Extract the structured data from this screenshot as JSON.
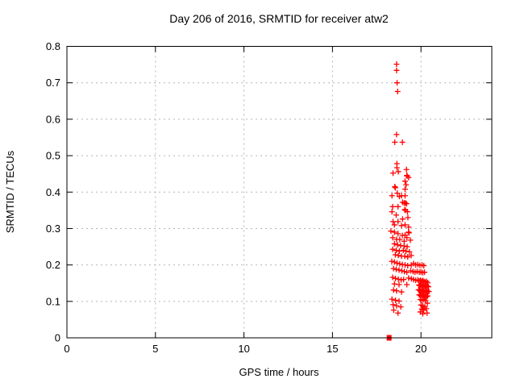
{
  "window": {
    "background": "#ffffff"
  },
  "chart_data": {
    "type": "scatter",
    "title": "Day 206 of 2016, SRMTID for receiver atw2",
    "xlabel": "GPS time / hours",
    "ylabel": "SRMTID / TECUs",
    "xlim": [
      0,
      24
    ],
    "ylim": [
      0,
      0.8
    ],
    "xticks": [
      {
        "value": 0,
        "label": "0"
      },
      {
        "value": 5,
        "label": "5"
      },
      {
        "value": 10,
        "label": "10"
      },
      {
        "value": 15,
        "label": "15"
      },
      {
        "value": 20,
        "label": "20"
      }
    ],
    "yticks": [
      {
        "value": 0,
        "label": "0"
      },
      {
        "value": 0.1,
        "label": "0.1"
      },
      {
        "value": 0.2,
        "label": "0.2"
      },
      {
        "value": 0.3,
        "label": "0.3"
      },
      {
        "value": 0.4,
        "label": "0.4"
      },
      {
        "value": 0.5,
        "label": "0.5"
      },
      {
        "value": 0.6,
        "label": "0.6"
      },
      {
        "value": 0.7,
        "label": "0.7"
      },
      {
        "value": 0.8,
        "label": "0.8"
      }
    ],
    "grid": true,
    "legend": "none",
    "colors": {
      "marker": "#ff0000",
      "grid": "#b4b4b4",
      "frame": "#000000",
      "text": "#000000",
      "background": "#ffffff"
    },
    "series": [
      {
        "marker": "plus",
        "color": "#ff0000",
        "points": [
          [
            18.62,
            0.751
          ],
          [
            18.62,
            0.734
          ],
          [
            18.65,
            0.7
          ],
          [
            18.68,
            0.676
          ],
          [
            18.62,
            0.558
          ],
          [
            18.52,
            0.537
          ],
          [
            18.95,
            0.537
          ],
          [
            18.64,
            0.478
          ],
          [
            18.64,
            0.467
          ],
          [
            18.42,
            0.452
          ],
          [
            18.72,
            0.456
          ],
          [
            19.18,
            0.462
          ],
          [
            19.2,
            0.446
          ],
          [
            19.22,
            0.444
          ],
          [
            19.3,
            0.44
          ],
          [
            19.1,
            0.43
          ],
          [
            19.16,
            0.42
          ],
          [
            18.52,
            0.415
          ],
          [
            18.55,
            0.412
          ],
          [
            19.1,
            0.408
          ],
          [
            18.66,
            0.397
          ],
          [
            18.36,
            0.39
          ],
          [
            18.9,
            0.39
          ],
          [
            19.1,
            0.39
          ],
          [
            18.78,
            0.388
          ],
          [
            18.96,
            0.372
          ],
          [
            19.05,
            0.37
          ],
          [
            19.12,
            0.37
          ],
          [
            19.18,
            0.368
          ],
          [
            18.4,
            0.36
          ],
          [
            18.7,
            0.36
          ],
          [
            19.08,
            0.352
          ],
          [
            19.12,
            0.35
          ],
          [
            19.24,
            0.346
          ],
          [
            18.36,
            0.346
          ],
          [
            18.6,
            0.337
          ],
          [
            18.96,
            0.326
          ],
          [
            19.26,
            0.33
          ],
          [
            18.42,
            0.319
          ],
          [
            18.7,
            0.319
          ],
          [
            18.5,
            0.31
          ],
          [
            18.9,
            0.308
          ],
          [
            19.1,
            0.31
          ],
          [
            19.3,
            0.304
          ],
          [
            18.3,
            0.293
          ],
          [
            18.5,
            0.29
          ],
          [
            19.3,
            0.29
          ],
          [
            19.32,
            0.288
          ],
          [
            18.7,
            0.286
          ],
          [
            18.95,
            0.281
          ],
          [
            19.1,
            0.282
          ],
          [
            18.4,
            0.275
          ],
          [
            18.62,
            0.27
          ],
          [
            18.8,
            0.27
          ],
          [
            19.2,
            0.275
          ],
          [
            19.4,
            0.268
          ],
          [
            19.05,
            0.265
          ],
          [
            18.5,
            0.258
          ],
          [
            18.68,
            0.255
          ],
          [
            18.85,
            0.253
          ],
          [
            19.05,
            0.252
          ],
          [
            19.22,
            0.25
          ],
          [
            18.4,
            0.243
          ],
          [
            18.6,
            0.24
          ],
          [
            18.78,
            0.238
          ],
          [
            19.0,
            0.24
          ],
          [
            19.15,
            0.238
          ],
          [
            19.35,
            0.236
          ],
          [
            18.55,
            0.228
          ],
          [
            18.72,
            0.226
          ],
          [
            18.9,
            0.224
          ],
          [
            19.08,
            0.224
          ],
          [
            19.25,
            0.222
          ],
          [
            19.45,
            0.226
          ],
          [
            18.35,
            0.21
          ],
          [
            18.5,
            0.208
          ],
          [
            18.65,
            0.205
          ],
          [
            18.8,
            0.203
          ],
          [
            18.95,
            0.201
          ],
          [
            19.1,
            0.2
          ],
          [
            19.25,
            0.198
          ],
          [
            19.45,
            0.2
          ],
          [
            19.58,
            0.204
          ],
          [
            19.7,
            0.2
          ],
          [
            19.82,
            0.201
          ],
          [
            19.94,
            0.199
          ],
          [
            20.06,
            0.2
          ],
          [
            20.16,
            0.198
          ],
          [
            18.45,
            0.19
          ],
          [
            18.6,
            0.188
          ],
          [
            18.76,
            0.186
          ],
          [
            18.92,
            0.184
          ],
          [
            19.06,
            0.182
          ],
          [
            19.2,
            0.18
          ],
          [
            19.42,
            0.184
          ],
          [
            19.55,
            0.182
          ],
          [
            19.66,
            0.18
          ],
          [
            19.78,
            0.182
          ],
          [
            19.9,
            0.18
          ],
          [
            20.0,
            0.181
          ],
          [
            20.1,
            0.179
          ],
          [
            20.2,
            0.18
          ],
          [
            18.4,
            0.166
          ],
          [
            18.56,
            0.163
          ],
          [
            18.72,
            0.161
          ],
          [
            18.88,
            0.159
          ],
          [
            19.02,
            0.16
          ],
          [
            19.3,
            0.164
          ],
          [
            19.46,
            0.162
          ],
          [
            19.58,
            0.16
          ],
          [
            19.7,
            0.158
          ],
          [
            19.82,
            0.159
          ],
          [
            19.9,
            0.156
          ],
          [
            19.97,
            0.158
          ],
          [
            20.04,
            0.155
          ],
          [
            20.1,
            0.157
          ],
          [
            20.17,
            0.155
          ],
          [
            20.24,
            0.153
          ],
          [
            20.31,
            0.155
          ],
          [
            20.38,
            0.151
          ],
          [
            18.5,
            0.148
          ],
          [
            18.76,
            0.146
          ],
          [
            19.2,
            0.146
          ],
          [
            19.88,
            0.145
          ],
          [
            19.94,
            0.143
          ],
          [
            20.0,
            0.145
          ],
          [
            20.06,
            0.141
          ],
          [
            20.12,
            0.143
          ],
          [
            20.18,
            0.141
          ],
          [
            20.24,
            0.142
          ],
          [
            20.3,
            0.14
          ],
          [
            20.36,
            0.142
          ],
          [
            20.42,
            0.14
          ],
          [
            18.45,
            0.131
          ],
          [
            18.62,
            0.129
          ],
          [
            18.9,
            0.126
          ],
          [
            19.86,
            0.132
          ],
          [
            19.92,
            0.13
          ],
          [
            19.98,
            0.128
          ],
          [
            20.04,
            0.13
          ],
          [
            20.1,
            0.127
          ],
          [
            20.16,
            0.129
          ],
          [
            20.22,
            0.126
          ],
          [
            20.28,
            0.128
          ],
          [
            20.34,
            0.126
          ],
          [
            20.4,
            0.128
          ],
          [
            20.45,
            0.127
          ],
          [
            19.9,
            0.118
          ],
          [
            19.96,
            0.116
          ],
          [
            20.02,
            0.118
          ],
          [
            20.08,
            0.115
          ],
          [
            20.14,
            0.116
          ],
          [
            20.2,
            0.113
          ],
          [
            20.26,
            0.115
          ],
          [
            20.32,
            0.113
          ],
          [
            20.38,
            0.115
          ],
          [
            18.36,
            0.106
          ],
          [
            18.56,
            0.103
          ],
          [
            18.76,
            0.101
          ],
          [
            19.96,
            0.105
          ],
          [
            20.06,
            0.103
          ],
          [
            20.16,
            0.105
          ],
          [
            20.26,
            0.102
          ],
          [
            20.36,
            0.095
          ],
          [
            18.42,
            0.091
          ],
          [
            18.62,
            0.088
          ],
          [
            18.86,
            0.085
          ],
          [
            20.0,
            0.09
          ],
          [
            20.1,
            0.088
          ],
          [
            20.22,
            0.085
          ],
          [
            20.05,
            0.079
          ],
          [
            20.16,
            0.076
          ],
          [
            20.3,
            0.08
          ],
          [
            19.96,
            0.071
          ],
          [
            20.1,
            0.066
          ],
          [
            18.46,
            0.076
          ],
          [
            18.7,
            0.068
          ],
          [
            20.34,
            0.068
          ]
        ]
      },
      {
        "marker": "square",
        "color": "#ff0000",
        "points": [
          [
            18.2,
            0.0
          ]
        ]
      }
    ]
  }
}
